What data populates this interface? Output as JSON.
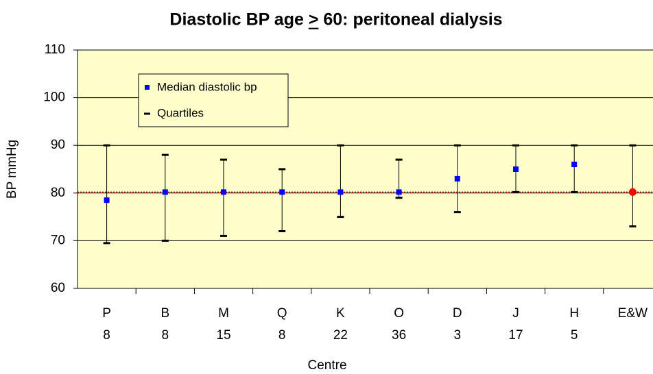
{
  "chart_data": {
    "type": "errorbar",
    "title": "Diastolic BP age > 60: peritoneal dialysis",
    "x_label": "Centre",
    "y_label": "BP mmHg",
    "categories": [
      "P",
      "B",
      "M",
      "Q",
      "K",
      "O",
      "D",
      "J",
      "H",
      "E&W"
    ],
    "category_counts": [
      8,
      8,
      15,
      8,
      22,
      36,
      3,
      17,
      5,
      null
    ],
    "series": [
      {
        "name": "Median diastolic bp",
        "color": "#0000ff",
        "point_colors": [
          "#0000ff",
          "#0000ff",
          "#0000ff",
          "#0000ff",
          "#0000ff",
          "#0000ff",
          "#0000ff",
          "#0000ff",
          "#0000ff",
          "#ff0000"
        ],
        "values": [
          78.5,
          80.2,
          80.2,
          80.2,
          80.2,
          80.2,
          83,
          85,
          86,
          80.2
        ]
      },
      {
        "name": "Quartiles",
        "color": "#000000",
        "lower": [
          69.5,
          70,
          71,
          72,
          75,
          79,
          76,
          80.2,
          80.2,
          73
        ],
        "upper": [
          90,
          88,
          87,
          85,
          90,
          87,
          90,
          90,
          90,
          90
        ]
      }
    ],
    "reference_line": {
      "value": 80.2,
      "color": "#cc0000"
    },
    "ylim": [
      60,
      110
    ],
    "yticks": [
      60,
      70,
      80,
      90,
      100,
      110
    ],
    "grid": true,
    "background": "#ffffcc",
    "legend": "upper left"
  }
}
